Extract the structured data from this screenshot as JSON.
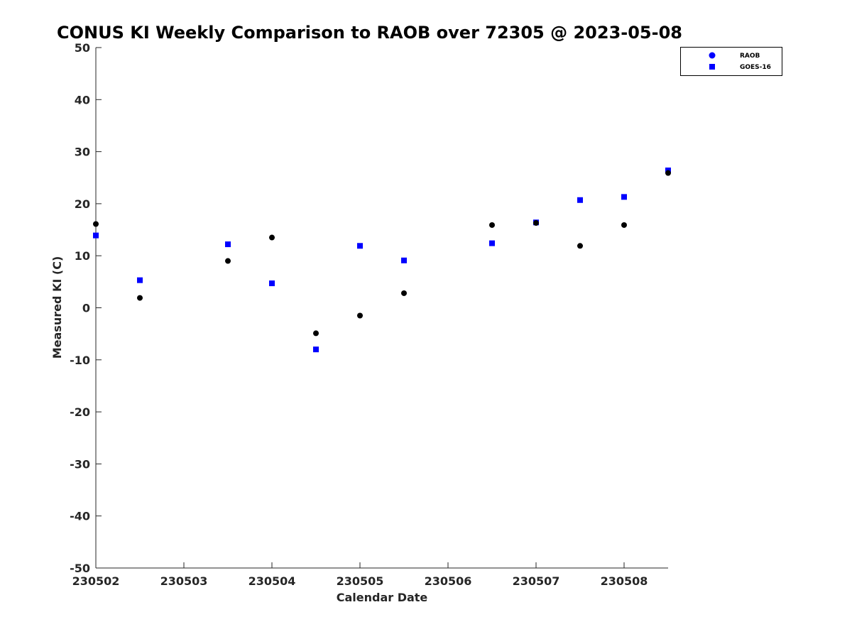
{
  "chart_data": {
    "type": "scatter",
    "title": "CONUS KI Weekly Comparison to RAOB over 72305 @ 2023-05-08",
    "xlabel": "Calendar Date",
    "ylabel": "Measured KI (C)",
    "xlim": [
      "2023-05-02",
      "2023-05-08 12:00"
    ],
    "ylim": [
      -50,
      50
    ],
    "x_ticks": [
      "230502",
      "230503",
      "230504",
      "230505",
      "230506",
      "230507",
      "230508"
    ],
    "y_ticks": [
      50,
      40,
      30,
      20,
      10,
      0,
      -10,
      -20,
      -30,
      -40,
      -50
    ],
    "grid": false,
    "legend_position": "top-right",
    "series": [
      {
        "name": "RAOB",
        "marker": "circle",
        "color": "#000000",
        "legend_color": "#0000ff",
        "points": [
          {
            "x": "2023-05-02 00:00",
            "y": 16.1
          },
          {
            "x": "2023-05-02 12:00",
            "y": 1.9
          },
          {
            "x": "2023-05-03 12:00",
            "y": 9.0
          },
          {
            "x": "2023-05-04 00:00",
            "y": 13.5
          },
          {
            "x": "2023-05-04 12:00",
            "y": -4.9
          },
          {
            "x": "2023-05-05 00:00",
            "y": -1.5
          },
          {
            "x": "2023-05-05 12:00",
            "y": 2.8
          },
          {
            "x": "2023-05-06 12:00",
            "y": 15.9
          },
          {
            "x": "2023-05-07 00:00",
            "y": 16.3
          },
          {
            "x": "2023-05-07 12:00",
            "y": 11.9
          },
          {
            "x": "2023-05-08 00:00",
            "y": 15.9
          },
          {
            "x": "2023-05-08 12:00",
            "y": 25.9
          }
        ]
      },
      {
        "name": "GOES-16",
        "marker": "square",
        "color": "#0000ff",
        "legend_color": "#0000ff",
        "points": [
          {
            "x": "2023-05-02 00:00",
            "y": 13.9
          },
          {
            "x": "2023-05-02 12:00",
            "y": 5.3
          },
          {
            "x": "2023-05-03 12:00",
            "y": 12.2
          },
          {
            "x": "2023-05-04 00:00",
            "y": 4.7
          },
          {
            "x": "2023-05-04 12:00",
            "y": -8.0
          },
          {
            "x": "2023-05-05 00:00",
            "y": 11.9
          },
          {
            "x": "2023-05-05 12:00",
            "y": 9.1
          },
          {
            "x": "2023-05-06 12:00",
            "y": 12.4
          },
          {
            "x": "2023-05-07 00:00",
            "y": 16.4
          },
          {
            "x": "2023-05-07 12:00",
            "y": 20.7
          },
          {
            "x": "2023-05-08 00:00",
            "y": 21.3
          },
          {
            "x": "2023-05-08 12:00",
            "y": 26.4
          }
        ]
      }
    ]
  }
}
